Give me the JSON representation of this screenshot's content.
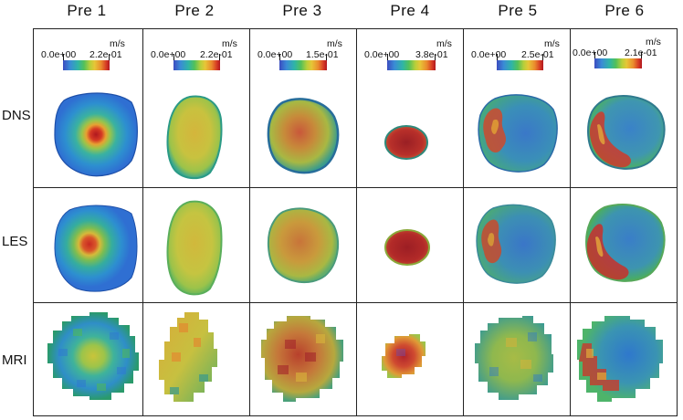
{
  "columns": [
    {
      "label": "Pre 1",
      "cb_min": "0.0e+00",
      "cb_max": "2.2e-01",
      "unit": "m/s"
    },
    {
      "label": "Pre  2",
      "cb_min": "0.0e+00",
      "cb_max": "2.2e-01",
      "unit": "m/s"
    },
    {
      "label": "Pre  3",
      "cb_min": "0.0e+00",
      "cb_max": "1.5e-01",
      "unit": "m/s"
    },
    {
      "label": "Pre  4",
      "cb_min": "0.0e+00",
      "cb_max": "3.8e-01",
      "unit": "m/s"
    },
    {
      "label": "Pre  5",
      "cb_min": "0.0e+00",
      "cb_max": "2.5e-01",
      "unit": "m/s"
    },
    {
      "label": "Pre  6",
      "cb_min": "0.0e+00",
      "cb_max": "2.1e-01",
      "unit": "m/s"
    }
  ],
  "rows": [
    {
      "label": "DNS"
    },
    {
      "label": "LES"
    },
    {
      "label": "MRI"
    }
  ],
  "colors": {
    "blue": "#2f6fd2",
    "teal": "#2aa89a",
    "green": "#4cba55",
    "yellowgreen": "#a9c43c",
    "yellow": "#d8c43c",
    "orange": "#d98a2e",
    "red": "#cf3327",
    "darkred": "#a8232a"
  }
}
